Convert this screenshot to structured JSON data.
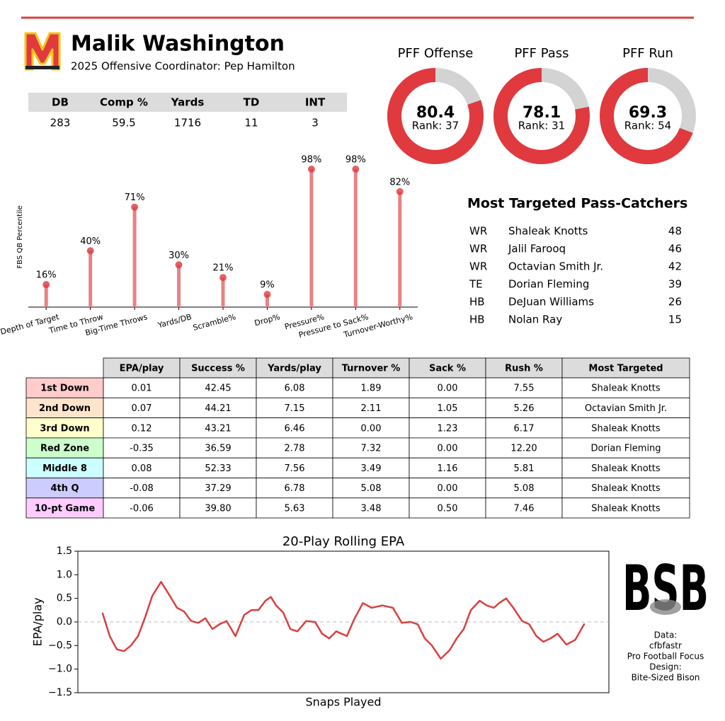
{
  "header": {
    "title": "Malik Washington",
    "subtitle": "2025 Offensive Coordinator: Pep Hamilton"
  },
  "stats_table": {
    "columns": [
      "DB",
      "Comp %",
      "Yards",
      "TD",
      "INT"
    ],
    "rows": [
      [
        "283",
        "59.5",
        "1716",
        "11",
        "3"
      ]
    ]
  },
  "chart_data": [
    {
      "type": "donut",
      "title": "PFF Offense",
      "value": 80.4,
      "rank": {
        "value": 37,
        "label": "Rank: 37"
      },
      "ylim": [
        0,
        100
      ],
      "color": "#e0393e",
      "track_color": "#d3d3d3"
    },
    {
      "type": "donut",
      "title": "PFF Pass",
      "value": 78.1,
      "rank": {
        "value": 31,
        "label": "Rank: 31"
      },
      "ylim": [
        0,
        100
      ],
      "color": "#e0393e",
      "track_color": "#d3d3d3"
    },
    {
      "type": "donut",
      "title": "PFF Run",
      "value": 69.3,
      "rank": {
        "value": 54,
        "label": "Rank: 54"
      },
      "ylim": [
        0,
        100
      ],
      "color": "#e0393e",
      "track_color": "#d3d3d3"
    },
    {
      "type": "lollipop",
      "ylabel": "FBS QB Percentile",
      "categories": [
        "Depth of Target",
        "Time to Throw",
        "Big-Time Throws",
        "Yards/DB",
        "Scramble%",
        "Drop%",
        "Pressure%",
        "Pressure to Sack%",
        "Turnover-Worthy%"
      ],
      "values": [
        16,
        40,
        71,
        30,
        21,
        9,
        98,
        98,
        82
      ],
      "value_labels": [
        "16%",
        "40%",
        "71%",
        "30%",
        "21%",
        "9%",
        "98%",
        "98%",
        "82%"
      ],
      "ylim": [
        0,
        100
      ],
      "color": "#e0393e",
      "stem_color": "#e88286"
    },
    {
      "type": "line",
      "title": "20-Play Rolling EPA",
      "xlabel": "Snaps Played",
      "ylabel": "EPA/play",
      "x": [
        14,
        18,
        22,
        26,
        30,
        34,
        38,
        42,
        47,
        52,
        56,
        60,
        64,
        68,
        72,
        76,
        80,
        84,
        89,
        94,
        98,
        102,
        106,
        109,
        112,
        116,
        120,
        124,
        129,
        134,
        138,
        142,
        146,
        152,
        156,
        161,
        166,
        172,
        178,
        183,
        188,
        192,
        196,
        200,
        205,
        210,
        214,
        218,
        222,
        227,
        231,
        235,
        238,
        242,
        246,
        251,
        255,
        259,
        263,
        267,
        271,
        276,
        281,
        286
      ],
      "values": [
        0.18,
        -0.3,
        -0.58,
        -0.62,
        -0.5,
        -0.3,
        0.1,
        0.55,
        0.85,
        0.55,
        0.3,
        0.22,
        0.02,
        -0.02,
        0.08,
        -0.15,
        -0.05,
        0.02,
        -0.3,
        0.15,
        0.25,
        0.25,
        0.45,
        0.53,
        0.35,
        0.2,
        -0.15,
        -0.2,
        0.02,
        0.0,
        -0.25,
        -0.35,
        -0.2,
        -0.3,
        0.05,
        0.4,
        0.3,
        0.35,
        0.3,
        -0.02,
        0.0,
        -0.05,
        -0.35,
        -0.5,
        -0.78,
        -0.6,
        -0.35,
        -0.15,
        0.25,
        0.45,
        0.35,
        0.3,
        0.4,
        0.5,
        0.3,
        0.02,
        -0.05,
        -0.3,
        -0.42,
        -0.35,
        -0.25,
        -0.48,
        -0.38,
        -0.05
      ],
      "xlim": [
        0,
        300
      ],
      "ylim": [
        -1.5,
        1.5
      ],
      "yticks": [
        {
          "value": -1.5,
          "label": "−1.5"
        },
        {
          "value": -1,
          "label": "−1.0"
        },
        {
          "value": -0.5,
          "label": "−0.5"
        },
        {
          "value": 0,
          "label": "0.0"
        },
        0.5,
        {
          "value": 1,
          "label": "1.0"
        },
        1.5
      ],
      "reference_line": 0,
      "color": "#d9403f"
    }
  ],
  "targets": {
    "title": "Most Targeted Pass-Catchers",
    "rows": [
      [
        "WR",
        "Shaleak Knotts",
        "48"
      ],
      [
        "WR",
        "Jalil Farooq",
        "46"
      ],
      [
        "WR",
        "Octavian Smith Jr.",
        "42"
      ],
      [
        "TE",
        "Dorian Fleming",
        "39"
      ],
      [
        "HB",
        "DeJuan Williams",
        "26"
      ],
      [
        "HB",
        "Nolan Ray",
        "15"
      ]
    ]
  },
  "situational": {
    "columns": [
      "EPA/play",
      "Success %",
      "Yards/play",
      "Turnover %",
      "Sack %",
      "Rush %",
      "Most Targeted"
    ],
    "rows": [
      {
        "label": "1st Down",
        "color": "#ffcccc",
        "cells": [
          "0.01",
          "42.45",
          "6.08",
          "1.89",
          "0.00",
          "7.55",
          "Shaleak Knotts"
        ]
      },
      {
        "label": "2nd Down",
        "color": "#ffe4cc",
        "cells": [
          "0.07",
          "44.21",
          "7.15",
          "2.11",
          "1.05",
          "5.26",
          "Octavian Smith Jr."
        ]
      },
      {
        "label": "3rd Down",
        "color": "#ffffcc",
        "cells": [
          "0.12",
          "43.21",
          "6.46",
          "0.00",
          "1.23",
          "6.17",
          "Shaleak Knotts"
        ]
      },
      {
        "label": "Red Zone",
        "color": "#ccffcc",
        "cells": [
          "-0.35",
          "36.59",
          "2.78",
          "7.32",
          "0.00",
          "12.20",
          "Dorian Fleming"
        ]
      },
      {
        "label": "Middle 8",
        "color": "#ccffff",
        "cells": [
          "0.08",
          "52.33",
          "7.56",
          "3.49",
          "1.16",
          "5.81",
          "Shaleak Knotts"
        ]
      },
      {
        "label": "4th Q",
        "color": "#ccccff",
        "cells": [
          "-0.08",
          "37.29",
          "6.78",
          "5.08",
          "0.00",
          "5.08",
          "Shaleak Knotts"
        ]
      },
      {
        "label": "10-pt Game",
        "color": "#ffccff",
        "cells": [
          "-0.06",
          "39.80",
          "5.63",
          "3.48",
          "0.50",
          "7.46",
          "Shaleak Knotts"
        ]
      }
    ]
  },
  "credits": {
    "logo": "BSB",
    "lines": [
      "Data:",
      "cfbfastr",
      "Pro Football Focus",
      "Design:",
      "Bite-Sized Bison"
    ]
  }
}
